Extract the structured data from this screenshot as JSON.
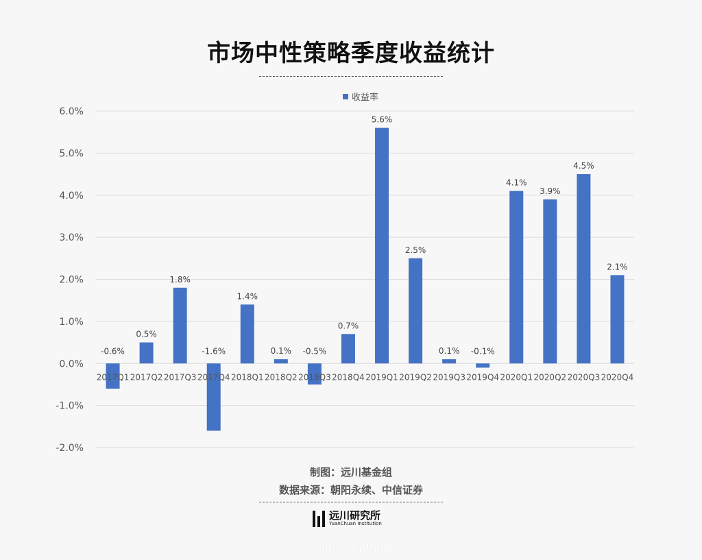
{
  "title": "市场中性策略季度收益统计",
  "legend": {
    "label": "收益率",
    "color": "#4472c4"
  },
  "credits": {
    "made_by": "制图：远川基金组",
    "source": "数据来源：朝阳永续、中信证券"
  },
  "logo": {
    "name": "远川研究所",
    "english": "YuanChuan Institution"
  },
  "watermark": "Chi na2au",
  "chart_data": {
    "type": "bar",
    "categories": [
      "2017Q1",
      "2017Q2",
      "2017Q3",
      "2017Q4",
      "2018Q1",
      "2018Q2",
      "2018Q3",
      "2018Q4",
      "2019Q1",
      "2019Q2",
      "2019Q3",
      "2019Q4",
      "2020Q1",
      "2020Q2",
      "2020Q3",
      "2020Q4"
    ],
    "series": [
      {
        "name": "收益率",
        "values": [
          -0.6,
          0.5,
          1.8,
          -1.6,
          1.4,
          0.1,
          -0.5,
          0.7,
          5.6,
          2.5,
          0.1,
          -0.1,
          4.1,
          3.9,
          4.5,
          2.1
        ]
      }
    ],
    "ylim": [
      -2.0,
      6.0
    ],
    "yticks": [
      -2.0,
      -1.0,
      0.0,
      1.0,
      2.0,
      3.0,
      4.0,
      5.0,
      6.0
    ],
    "ytick_labels": [
      "-2.0%",
      "-1.0%",
      "0.0%",
      "1.0%",
      "2.0%",
      "3.0%",
      "4.0%",
      "5.0%",
      "6.0%"
    ],
    "data_labels": [
      "-0.6%",
      "0.5%",
      "1.8%",
      "-1.6%",
      "1.4%",
      "0.1%",
      "-0.5%",
      "0.7%",
      "5.6%",
      "2.5%",
      "0.1%",
      "-0.1%",
      "4.1%",
      "3.9%",
      "4.5%",
      "2.1%"
    ],
    "grid": true,
    "legend_position": "top"
  }
}
